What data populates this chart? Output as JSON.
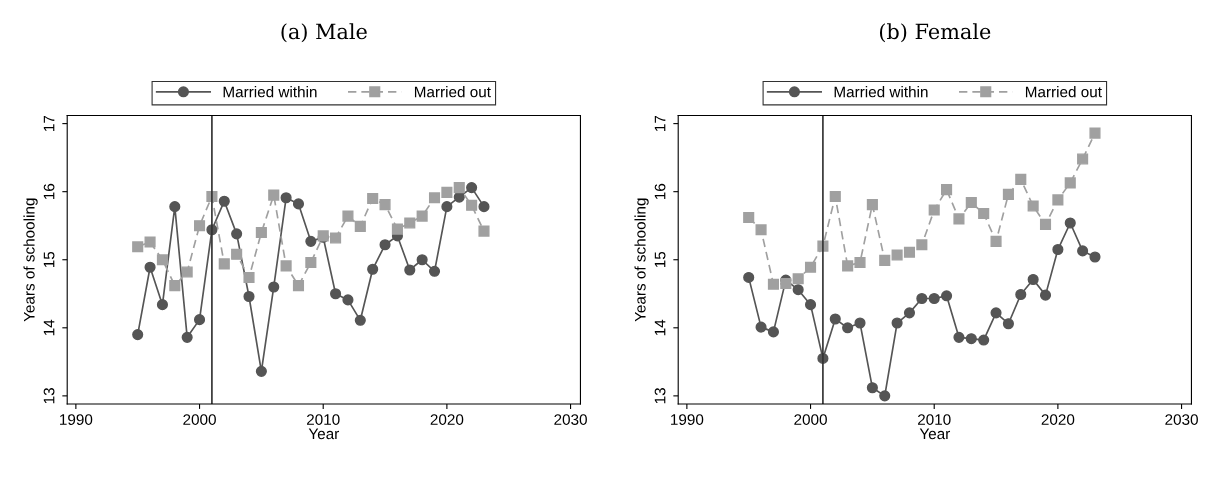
{
  "chart_data": [
    {
      "type": "line",
      "title": "(a) Male",
      "xlabel": "Year",
      "ylabel": "Years of schooling",
      "x": [
        1995,
        1996,
        1997,
        1998,
        1999,
        2000,
        2001,
        2002,
        2003,
        2004,
        2005,
        2006,
        2007,
        2008,
        2009,
        2010,
        2011,
        2012,
        2013,
        2014,
        2015,
        2016,
        2017,
        2018,
        2019,
        2020,
        2021,
        2022,
        2023
      ],
      "series": [
        {
          "name": "Married within",
          "color": "#555555",
          "marker": "circle",
          "line_style": "solid",
          "values": [
            13.9,
            14.89,
            14.34,
            15.78,
            13.86,
            14.12,
            15.44,
            15.86,
            15.38,
            14.46,
            13.36,
            14.6,
            15.91,
            15.82,
            15.27,
            15.33,
            14.5,
            14.41,
            14.11,
            14.86,
            15.22,
            15.35,
            14.85,
            15.0,
            14.83,
            15.78,
            15.92,
            16.06,
            15.78
          ]
        },
        {
          "name": "Married out",
          "color": "#a0a0a0",
          "marker": "square",
          "line_style": "dashed",
          "values": [
            15.19,
            15.26,
            15.0,
            14.62,
            14.82,
            15.5,
            15.93,
            14.94,
            15.08,
            14.74,
            15.4,
            15.95,
            14.91,
            14.62,
            14.96,
            15.35,
            15.32,
            15.64,
            15.49,
            15.9,
            15.81,
            15.45,
            15.54,
            15.64,
            15.91,
            15.99,
            16.06,
            15.8,
            15.42
          ]
        }
      ],
      "xlim": [
        1989.3,
        2030.8
      ],
      "xticks": [
        1990,
        2000,
        2010,
        2020,
        2030
      ],
      "ylim": [
        12.88,
        17.12
      ],
      "yticks": [
        13,
        14,
        15,
        16,
        17
      ],
      "ref_lines": [
        {
          "axis": "x",
          "value": 2001,
          "color": "#333333"
        }
      ],
      "grid": false,
      "legend": "top"
    },
    {
      "type": "line",
      "title": "(b) Female",
      "xlabel": "Year",
      "ylabel": "Years of schooling",
      "x": [
        1995,
        1996,
        1997,
        1998,
        1999,
        2000,
        2001,
        2002,
        2003,
        2004,
        2005,
        2006,
        2007,
        2008,
        2009,
        2010,
        2011,
        2012,
        2013,
        2014,
        2015,
        2016,
        2017,
        2018,
        2019,
        2020,
        2021,
        2022,
        2023
      ],
      "series": [
        {
          "name": "Married within",
          "color": "#555555",
          "marker": "circle",
          "line_style": "solid",
          "values": [
            14.74,
            14.01,
            13.94,
            14.7,
            14.56,
            14.34,
            13.55,
            14.13,
            14.0,
            14.07,
            13.12,
            13.0,
            14.07,
            14.22,
            14.43,
            14.43,
            14.47,
            13.86,
            13.84,
            13.82,
            14.22,
            14.06,
            14.49,
            14.71,
            14.48,
            15.15,
            15.54,
            15.13,
            15.04
          ]
        },
        {
          "name": "Married out",
          "color": "#a0a0a0",
          "marker": "square",
          "line_style": "dashed",
          "values": [
            15.62,
            15.44,
            14.64,
            14.65,
            14.72,
            14.89,
            15.2,
            15.93,
            14.91,
            14.96,
            15.81,
            14.99,
            15.07,
            15.11,
            15.22,
            15.73,
            16.03,
            15.6,
            15.84,
            15.68,
            15.27,
            15.96,
            16.18,
            15.79,
            15.52,
            15.88,
            16.13,
            16.48,
            16.86
          ]
        }
      ],
      "xlim": [
        1989.3,
        2030.8
      ],
      "xticks": [
        1990,
        2000,
        2010,
        2020,
        2030
      ],
      "ylim": [
        12.88,
        17.12
      ],
      "yticks": [
        13,
        14,
        15,
        16,
        17
      ],
      "ref_lines": [
        {
          "axis": "x",
          "value": 2001,
          "color": "#333333"
        }
      ],
      "grid": false,
      "legend": "top"
    }
  ]
}
